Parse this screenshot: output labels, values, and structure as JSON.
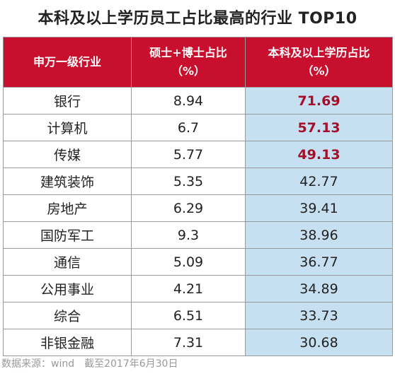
{
  "title": "本科及以上学历员工占比最高的行业 TOP10",
  "header": {
    "col1": "申万一级行业",
    "col2_line1": "硕士+博士占比",
    "col2_line2": "（%）",
    "col3_line1": "本科及以上学历占比",
    "col3_line2": "（%）"
  },
  "rows": [
    {
      "industry": "银行",
      "master_phd": "8.94",
      "bachelor_plus": "71.69",
      "highlight": true
    },
    {
      "industry": "计算机",
      "master_phd": "6.7",
      "bachelor_plus": "57.13",
      "highlight": true
    },
    {
      "industry": "传媒",
      "master_phd": "5.77",
      "bachelor_plus": "49.13",
      "highlight": true
    },
    {
      "industry": "建筑装饰",
      "master_phd": "5.35",
      "bachelor_plus": "42.77",
      "highlight": false
    },
    {
      "industry": "房地产",
      "master_phd": "6.29",
      "bachelor_plus": "39.41",
      "highlight": false
    },
    {
      "industry": "国防军工",
      "master_phd": "9.3",
      "bachelor_plus": "38.96",
      "highlight": false
    },
    {
      "industry": "通信",
      "master_phd": "5.09",
      "bachelor_plus": "36.77",
      "highlight": false
    },
    {
      "industry": "公用事业",
      "master_phd": "4.21",
      "bachelor_plus": "34.89",
      "highlight": false
    },
    {
      "industry": "综合",
      "master_phd": "6.51",
      "bachelor_plus": "33.73",
      "highlight": false
    },
    {
      "industry": "非银金融",
      "master_phd": "7.31",
      "bachelor_plus": "30.68",
      "highlight": false
    }
  ],
  "source": "数据来源：wind　截至2017年6月30日",
  "colors": {
    "header_bg": "#c8102e",
    "highlight_text": "#a3102a",
    "col3_bg": "#c6dff1"
  },
  "chart_data": {
    "type": "table",
    "title": "本科及以上学历员工占比最高的行业 TOP10",
    "columns": [
      "申万一级行业",
      "硕士+博士占比（%）",
      "本科及以上学历占比（%）"
    ],
    "rows": [
      [
        "银行",
        8.94,
        71.69
      ],
      [
        "计算机",
        6.7,
        57.13
      ],
      [
        "传媒",
        5.77,
        49.13
      ],
      [
        "建筑装饰",
        5.35,
        42.77
      ],
      [
        "房地产",
        6.29,
        39.41
      ],
      [
        "国防军工",
        9.3,
        38.96
      ],
      [
        "通信",
        5.09,
        36.77
      ],
      [
        "公用事业",
        4.21,
        34.89
      ],
      [
        "综合",
        6.51,
        33.73
      ],
      [
        "非银金融",
        7.31,
        30.68
      ]
    ]
  }
}
